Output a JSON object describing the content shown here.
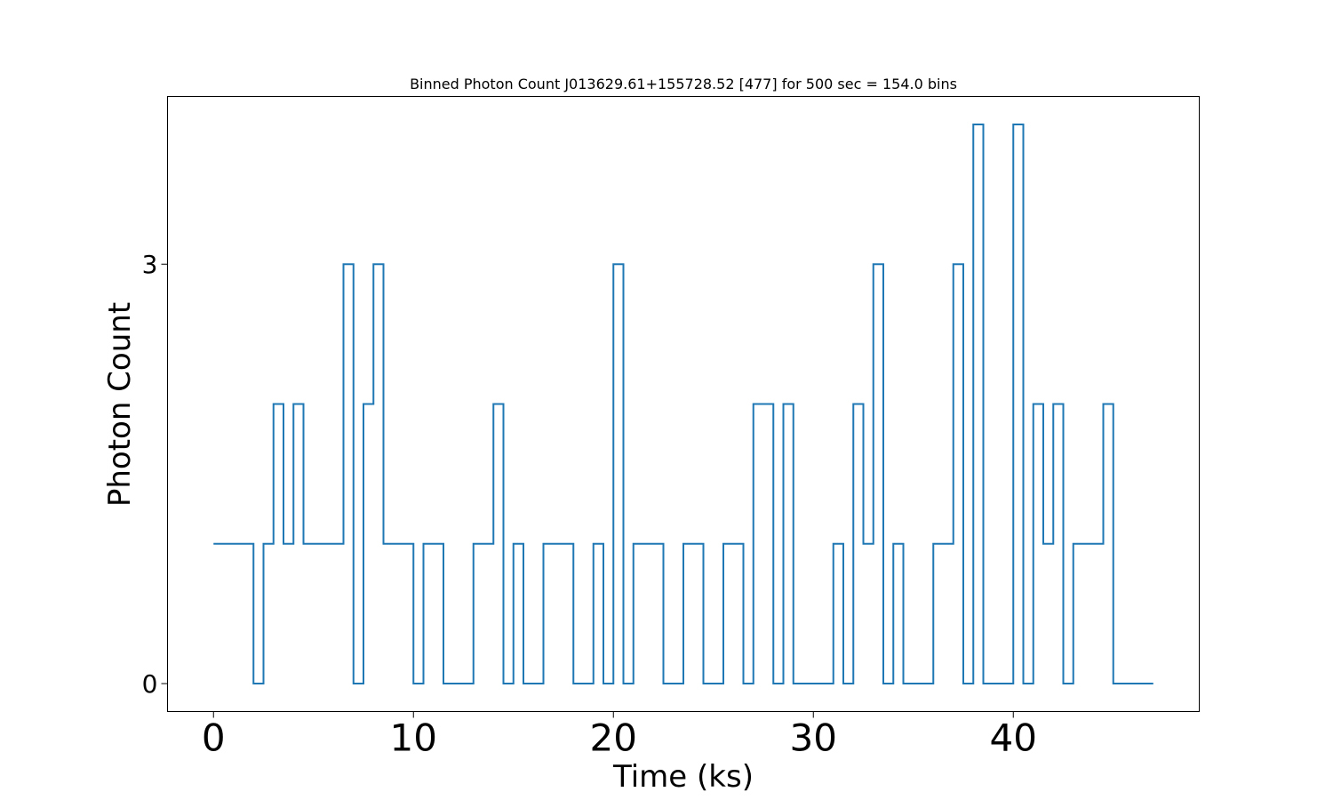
{
  "chart_data": {
    "type": "line",
    "drawstyle": "steps-post",
    "title": "Binned Photon Count J013629.61+155728.52 [477] for 500 sec = 154.0 bins",
    "xlabel": "Time (ks)",
    "ylabel": "Photon Count",
    "xlim": [
      -2.3,
      49.3
    ],
    "ylim": [
      -0.2,
      4.2
    ],
    "xticks": [
      0,
      10,
      20,
      30,
      40
    ],
    "xtick_labels": [
      "0",
      "10",
      "20",
      "30",
      "40"
    ],
    "yticks": [
      0,
      3
    ],
    "ytick_labels": [
      "0",
      "3"
    ],
    "grid": false,
    "line_color": "#1f77b4",
    "series": [
      {
        "x": [
          0,
          2,
          2.5,
          3,
          3.5,
          4,
          4.5,
          6.5,
          7,
          7.5,
          8,
          8.5,
          10,
          10.5,
          11.5,
          13,
          14,
          14.5,
          15,
          15.5,
          16.5,
          18,
          19,
          19.5,
          20,
          20.5,
          21,
          22.5,
          23.5,
          24.5,
          25.5,
          26.5,
          27,
          28,
          28.5,
          29,
          31,
          31.5,
          32,
          32.5,
          33,
          33.5,
          34,
          34.5,
          36,
          37,
          37.5,
          38,
          38.5,
          40,
          40.5,
          41,
          41.5,
          42,
          42.5,
          43,
          44.5,
          45,
          47
        ],
        "y": [
          1,
          0,
          1,
          2,
          1,
          2,
          1,
          3,
          0,
          2,
          3,
          1,
          0,
          1,
          0,
          1,
          2,
          0,
          1,
          0,
          1,
          0,
          1,
          0,
          3,
          0,
          1,
          0,
          1,
          0,
          1,
          0,
          2,
          0,
          2,
          0,
          1,
          0,
          2,
          1,
          3,
          0,
          1,
          0,
          1,
          3,
          0,
          4,
          0,
          4,
          0,
          2,
          1,
          2,
          0,
          1,
          2,
          0,
          0
        ]
      }
    ]
  }
}
